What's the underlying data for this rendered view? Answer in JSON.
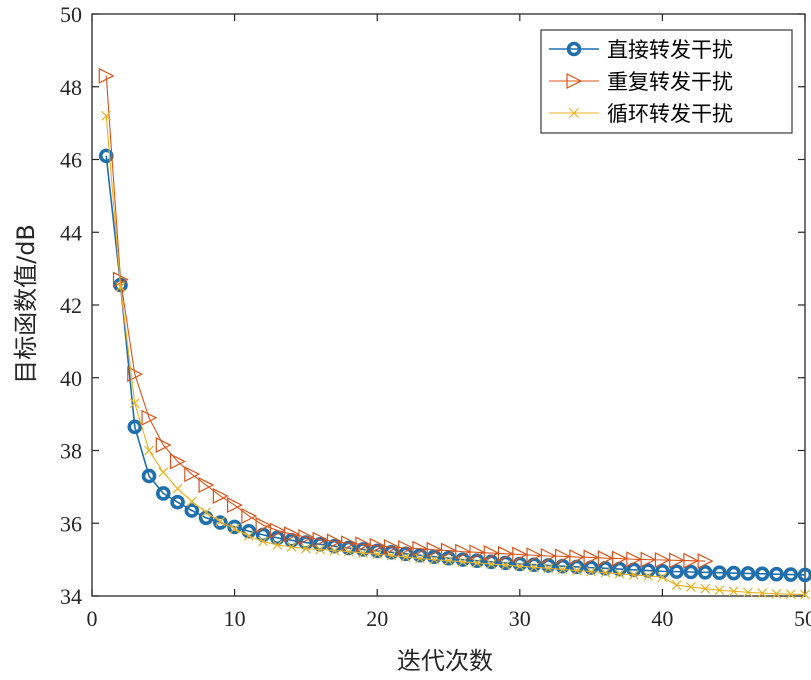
{
  "chart_data": {
    "type": "line",
    "title": "",
    "xlabel": "迭代次数",
    "ylabel": "目标函数值/dB",
    "xlim": [
      0,
      50
    ],
    "ylim": [
      34,
      50
    ],
    "x_ticks": [
      0,
      10,
      20,
      30,
      40,
      50
    ],
    "y_ticks": [
      34,
      36,
      38,
      40,
      42,
      44,
      46,
      48,
      50
    ],
    "grid": true,
    "legend_position": "top-right",
    "series": [
      {
        "name": "直接转发干扰",
        "color": "#1f6fad",
        "marker": "circle",
        "x": [
          1,
          2,
          3,
          4,
          5,
          6,
          7,
          8,
          9,
          10,
          11,
          12,
          13,
          14,
          15,
          16,
          17,
          18,
          19,
          20,
          21,
          22,
          23,
          24,
          25,
          26,
          27,
          28,
          29,
          30,
          31,
          32,
          33,
          34,
          35,
          36,
          37,
          38,
          39,
          40,
          41,
          42,
          43,
          44,
          45,
          46,
          47,
          48,
          49,
          50
        ],
        "values": [
          46.1,
          42.55,
          38.65,
          37.3,
          36.82,
          36.58,
          36.35,
          36.15,
          36.02,
          35.9,
          35.78,
          35.68,
          35.6,
          35.53,
          35.47,
          35.42,
          35.37,
          35.32,
          35.28,
          35.24,
          35.2,
          35.16,
          35.12,
          35.08,
          35.04,
          35.0,
          34.97,
          34.94,
          34.91,
          34.88,
          34.86,
          34.84,
          34.82,
          34.8,
          34.78,
          34.76,
          34.74,
          34.72,
          34.7,
          34.68,
          34.67,
          34.66,
          34.65,
          34.64,
          34.63,
          34.62,
          34.61,
          34.6,
          34.59,
          34.58
        ]
      },
      {
        "name": "重复转发干扰",
        "color": "#d95319",
        "marker": "triangle-right",
        "x": [
          1,
          2,
          3,
          4,
          5,
          6,
          7,
          8,
          9,
          10,
          11,
          12,
          13,
          14,
          15,
          16,
          17,
          18,
          19,
          20,
          21,
          22,
          23,
          24,
          25,
          26,
          27,
          28,
          29,
          30,
          31,
          32,
          33,
          34,
          35,
          36,
          37,
          38,
          39,
          40,
          41,
          42,
          43
        ],
        "values": [
          48.3,
          42.7,
          40.1,
          38.9,
          38.15,
          37.7,
          37.35,
          37.05,
          36.75,
          36.5,
          36.2,
          35.95,
          35.8,
          35.7,
          35.62,
          35.55,
          35.5,
          35.45,
          35.42,
          35.38,
          35.35,
          35.32,
          35.3,
          35.27,
          35.25,
          35.22,
          35.2,
          35.18,
          35.16,
          35.14,
          35.12,
          35.1,
          35.09,
          35.07,
          35.06,
          35.04,
          35.03,
          35.01,
          35.0,
          34.99,
          34.98,
          34.97,
          34.96
        ]
      },
      {
        "name": "循环转发干扰",
        "color": "#edb120",
        "marker": "x",
        "x": [
          1,
          2,
          3,
          4,
          5,
          6,
          7,
          8,
          9,
          10,
          11,
          12,
          13,
          14,
          15,
          16,
          17,
          18,
          19,
          20,
          21,
          22,
          23,
          24,
          25,
          26,
          27,
          28,
          29,
          30,
          31,
          32,
          33,
          34,
          35,
          36,
          37,
          38,
          39,
          40,
          41,
          42,
          43,
          44,
          45,
          46,
          47,
          48,
          49,
          50
        ],
        "values": [
          47.2,
          42.5,
          39.3,
          38.0,
          37.4,
          36.95,
          36.6,
          36.3,
          36.05,
          35.85,
          35.65,
          35.5,
          35.4,
          35.35,
          35.3,
          35.28,
          35.25,
          35.22,
          35.18,
          35.15,
          35.11,
          35.07,
          35.03,
          35.0,
          34.97,
          34.94,
          34.91,
          34.88,
          34.85,
          34.82,
          34.79,
          34.76,
          34.73,
          34.7,
          34.67,
          34.64,
          34.61,
          34.58,
          34.55,
          34.52,
          34.3,
          34.25,
          34.2,
          34.16,
          34.13,
          34.1,
          34.08,
          34.06,
          34.05,
          34.04
        ]
      }
    ]
  }
}
